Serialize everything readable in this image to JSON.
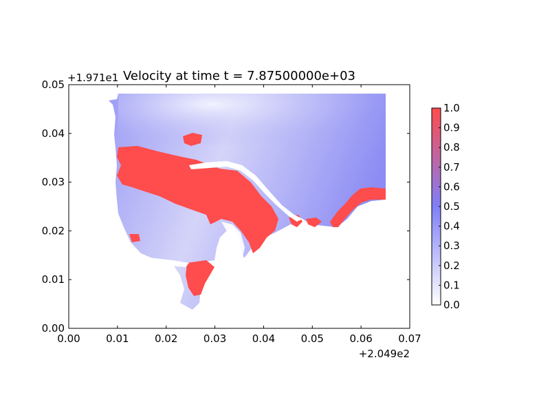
{
  "chart_data": {
    "type": "heatmap",
    "title": "Velocity at time t = 7.87500000e+03",
    "xlabel": "",
    "ylabel": "",
    "x_offset_label": "+2.049e2",
    "y_offset_label": "+1.971e1",
    "xlim": [
      0.0,
      0.07
    ],
    "ylim": [
      0.0,
      0.05
    ],
    "x_ticks": [
      "0.00",
      "0.01",
      "0.02",
      "0.03",
      "0.04",
      "0.05",
      "0.06",
      "0.07"
    ],
    "y_ticks": [
      "0.00",
      "0.01",
      "0.02",
      "0.03",
      "0.04",
      "0.05"
    ],
    "colorbar": {
      "min": 0.0,
      "max": 1.0,
      "ticks": [
        "0.0",
        "0.1",
        "0.2",
        "0.3",
        "0.4",
        "0.5",
        "0.6",
        "0.7",
        "0.8",
        "0.9",
        "1.0"
      ],
      "colors": {
        "low": "#ffffff",
        "mid": "#7f7ff8",
        "high": "#ff4c4c"
      }
    },
    "grid": false
  }
}
